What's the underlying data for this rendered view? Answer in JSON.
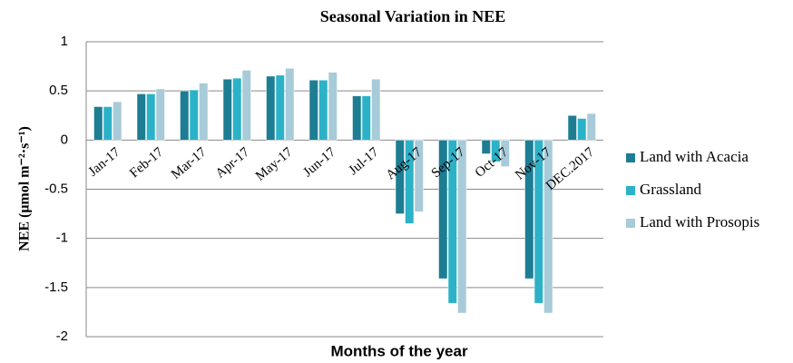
{
  "chart_data": {
    "type": "bar",
    "title": "Seasonal Variation in NEE",
    "x_label": "Months of the year",
    "y_label": "NEE (μmol m⁻²·s⁻¹)",
    "categories": [
      "Jan-17",
      "Feb-17",
      "Mar-17",
      "Apr-17",
      "May-17",
      "Jun-17",
      "Jul-17",
      "Aug-17",
      "Sep-17",
      "Oct-17",
      "Nov-17",
      "DEC.2017"
    ],
    "series": [
      {
        "name": "Land with Acacia",
        "color": "#1d7d93",
        "values": [
          0.34,
          0.47,
          0.5,
          0.62,
          0.65,
          0.61,
          0.45,
          -0.75,
          -1.41,
          -0.14,
          -1.41,
          0.25
        ]
      },
      {
        "name": "Grassland",
        "color": "#2cb2c8",
        "values": [
          0.34,
          0.47,
          0.51,
          0.63,
          0.66,
          0.61,
          0.45,
          -0.85,
          -1.66,
          -0.22,
          -1.66,
          0.22
        ]
      },
      {
        "name": "Land with Prosopis",
        "color": "#a7cbd8",
        "values": [
          0.39,
          0.52,
          0.58,
          0.71,
          0.73,
          0.69,
          0.62,
          -0.73,
          -1.76,
          -0.27,
          -1.76,
          0.27
        ]
      }
    ],
    "ylim": [
      -2,
      1
    ],
    "yticks": [
      1,
      0.5,
      0,
      -0.5,
      -1,
      -1.5,
      -2
    ],
    "grid": true,
    "legend": "right"
  }
}
